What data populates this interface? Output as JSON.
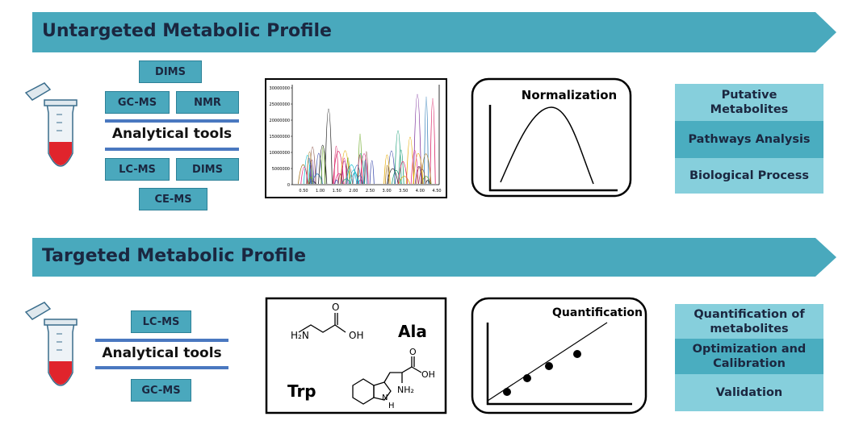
{
  "untargeted": {
    "title": "Untargeted Metabolic Profile",
    "tools": {
      "top": [
        "DIMS",
        "GC-MS",
        "NMR"
      ],
      "label": "Analytical tools",
      "bottom": [
        "LC-MS",
        "DIMS",
        "CE-MS"
      ]
    },
    "chromatogram": {
      "yticks": [
        "30000000",
        "25000000",
        "20000000",
        "15000000",
        "10000000",
        "5000000",
        "0"
      ],
      "xticks": [
        "0.50",
        "1.00",
        "1.50",
        "2.00",
        "2.50",
        "3.00",
        "3.50",
        "4.00",
        "4.50"
      ]
    },
    "normalization": "Normalization",
    "outputs": [
      "Putative Metabolites",
      "Pathways Analysis",
      "Biological Process"
    ]
  },
  "targeted": {
    "title": "Targeted Metabolic Profile",
    "tools": {
      "top": [
        "LC-MS"
      ],
      "label": "Analytical tools",
      "bottom": [
        "GC-MS"
      ]
    },
    "molecules": {
      "ala": {
        "name": "Ala",
        "atoms": [
          "H₂N",
          "O",
          "OH"
        ]
      },
      "trp": {
        "name": "Trp",
        "atoms": [
          "O",
          "OH",
          "NH₂",
          "H",
          "N"
        ]
      }
    },
    "quantification": "Quantification",
    "outputs": [
      "Quantification of metabolites",
      "Optimization and Calibration",
      "Validation"
    ]
  }
}
